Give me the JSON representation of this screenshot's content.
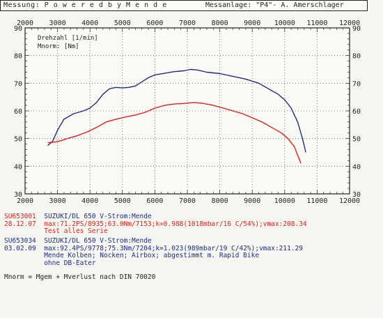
{
  "header": {
    "left_text": "Messung:  P o w e r e d  b y  M e n d e",
    "right_text": "Messanlage: \"P4\"- A. Amerschlager"
  },
  "chart_data": {
    "type": "line",
    "xlim": [
      2000,
      12000
    ],
    "ylim": [
      30,
      90
    ],
    "x_ticks": [
      2000,
      3000,
      4000,
      5000,
      6000,
      7000,
      8000,
      9000,
      10000,
      11000,
      12000
    ],
    "y_ticks": [
      30,
      40,
      50,
      60,
      70,
      80,
      90
    ],
    "grid": true,
    "inner_labels": [
      "Drehzahl [1/min]",
      "Mnorm: [Nm]"
    ],
    "series": [
      {
        "color": "#1e2a8a",
        "points": [
          [
            2700,
            47.5
          ],
          [
            2850,
            49
          ],
          [
            3000,
            53
          ],
          [
            3200,
            57
          ],
          [
            3500,
            59
          ],
          [
            3800,
            60
          ],
          [
            4000,
            61
          ],
          [
            4200,
            63
          ],
          [
            4400,
            66
          ],
          [
            4600,
            68
          ],
          [
            4800,
            68.5
          ],
          [
            5000,
            68.3
          ],
          [
            5200,
            68.5
          ],
          [
            5400,
            69
          ],
          [
            5600,
            70.5
          ],
          [
            5800,
            72
          ],
          [
            6000,
            73
          ],
          [
            6300,
            73.6
          ],
          [
            6600,
            74.2
          ],
          [
            6900,
            74.5
          ],
          [
            7100,
            75
          ],
          [
            7300,
            74.8
          ],
          [
            7600,
            74
          ],
          [
            8000,
            73.5
          ],
          [
            8400,
            72.5
          ],
          [
            8800,
            71.5
          ],
          [
            9200,
            70
          ],
          [
            9500,
            68
          ],
          [
            9800,
            66
          ],
          [
            10000,
            64
          ],
          [
            10200,
            61
          ],
          [
            10400,
            56
          ],
          [
            10550,
            50
          ],
          [
            10650,
            45
          ]
        ]
      },
      {
        "color": "#e0201c",
        "points": [
          [
            2700,
            48.5
          ],
          [
            2900,
            48.7
          ],
          [
            3100,
            49.2
          ],
          [
            3300,
            50
          ],
          [
            3600,
            51
          ],
          [
            3900,
            52.3
          ],
          [
            4200,
            54
          ],
          [
            4500,
            56
          ],
          [
            4800,
            57
          ],
          [
            5100,
            57.8
          ],
          [
            5400,
            58.5
          ],
          [
            5700,
            59.5
          ],
          [
            6000,
            61
          ],
          [
            6300,
            62
          ],
          [
            6600,
            62.5
          ],
          [
            6900,
            62.7
          ],
          [
            7200,
            63
          ],
          [
            7500,
            62.7
          ],
          [
            7800,
            62
          ],
          [
            8100,
            61
          ],
          [
            8400,
            60
          ],
          [
            8700,
            59
          ],
          [
            9000,
            57.5
          ],
          [
            9300,
            56
          ],
          [
            9600,
            54
          ],
          [
            9900,
            52
          ],
          [
            10100,
            50
          ],
          [
            10300,
            47
          ],
          [
            10400,
            44
          ],
          [
            10500,
            41
          ]
        ]
      }
    ]
  },
  "legend": {
    "run1": {
      "id": "SU653001",
      "date": "28.12.07",
      "title": "SUZUKI/DL 650 V-Strom:Mende",
      "values": "max:71.2PS/8935;63.0Nm/7153;k=0.988(1018mbar/16 C/54%);vmax:208.34",
      "note": "Test alles Serie"
    },
    "run2": {
      "id": "SU653034",
      "date": "03.02.09",
      "title": "SUZUKI/DL 650 V-Strom:Mende",
      "values": "max:92.4PS/9778;75.3Nm/7204;k=1.023(989mbar/19 C/42%);vmax:211.29",
      "note1": "Mende Kolben; Nocken; Airbox; abgestimmt m. Rapid Bike",
      "note2": "ohne DB-Eater"
    }
  },
  "footer_note": "Mnorm = Mgem + Mverlust nach DIN 70020"
}
